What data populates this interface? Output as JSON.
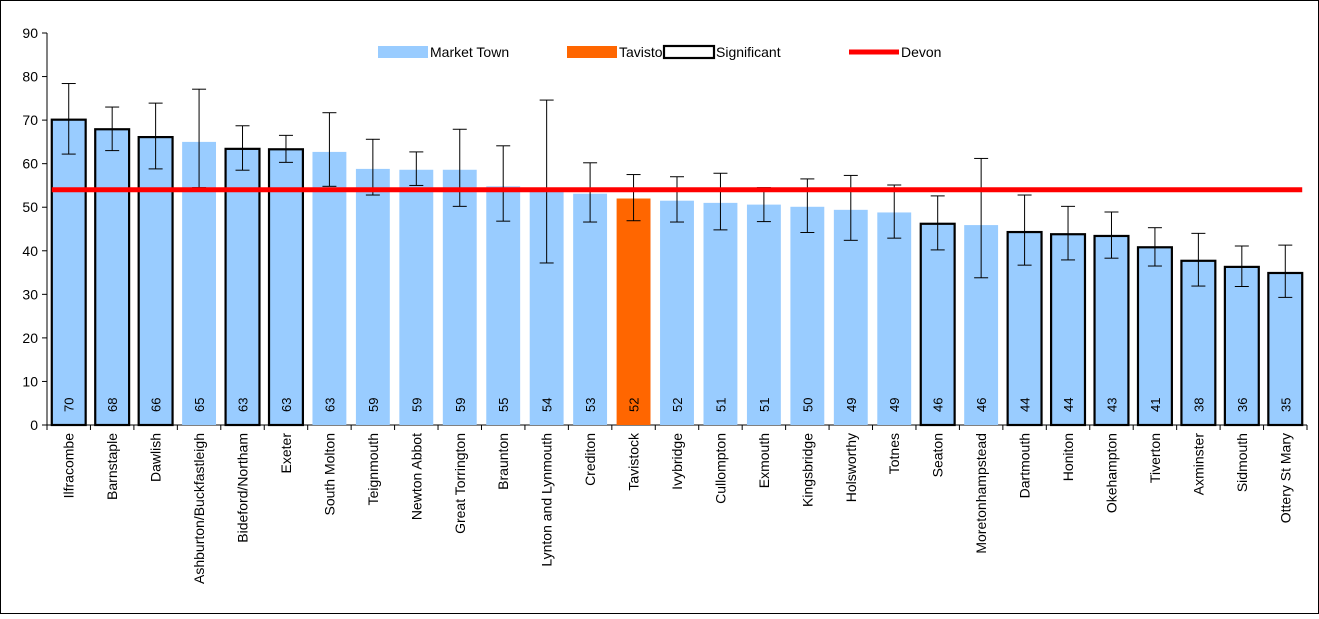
{
  "chart_data": {
    "type": "bar",
    "title": "",
    "xlabel": "",
    "ylabel": "",
    "ylim": [
      0,
      90
    ],
    "yticks": [
      0,
      10,
      20,
      30,
      40,
      50,
      60,
      70,
      80,
      90
    ],
    "grid": false,
    "legend_placement": "top-center",
    "legend": [
      {
        "label": "Market Town",
        "kind": "fill",
        "color": "#99ccff"
      },
      {
        "label": "Tavistock",
        "kind": "fill",
        "color": "#ff6600"
      },
      {
        "label": "Significant",
        "kind": "outline",
        "color": "#000000"
      },
      {
        "label": "Devon",
        "kind": "line",
        "color": "#ff0000"
      }
    ],
    "reference_line": {
      "name": "Devon",
      "value": 54,
      "color": "#ff0000"
    },
    "colors": {
      "market_town": "#99ccff",
      "highlight": "#ff6600",
      "significant_border": "#000000",
      "devon_line": "#ff0000"
    },
    "categories": [
      "Ilfracombe",
      "Barnstaple",
      "Dawlish",
      "Ashburton/Buckfastleigh",
      "Bideford/Northam",
      "Exeter",
      "South Molton",
      "Teignmouth",
      "Newton Abbot",
      "Great Torrington",
      "Braunton",
      "Lynton and Lynmouth",
      "Crediton",
      "Tavistock",
      "Ivybridge",
      "Cullompton",
      "Exmouth",
      "Kingsbridge",
      "Holsworthy",
      "Totnes",
      "Seaton",
      "Moretonhampstead",
      "Dartmouth",
      "Honiton",
      "Okehampton",
      "Tiverton",
      "Axminster",
      "Sidmouth",
      "Ottery St Mary"
    ],
    "values": [
      70.1,
      67.9,
      66.1,
      65.0,
      63.4,
      63.3,
      62.7,
      58.8,
      58.6,
      58.6,
      54.8,
      53.6,
      53.1,
      52.0,
      51.5,
      51.0,
      50.6,
      50.1,
      49.4,
      48.8,
      46.2,
      45.9,
      44.3,
      43.8,
      43.4,
      40.8,
      37.7,
      36.3,
      34.9
    ],
    "value_labels": [
      "70",
      "68",
      "66",
      "65",
      "63",
      "63",
      "63",
      "59",
      "59",
      "59",
      "55",
      "54",
      "53",
      "52",
      "52",
      "51",
      "51",
      "50",
      "49",
      "49",
      "46",
      "46",
      "44",
      "44",
      "43",
      "41",
      "38",
      "36",
      "35"
    ],
    "error_low": [
      62.2,
      63.0,
      58.8,
      54.5,
      58.5,
      60.3,
      54.8,
      52.8,
      55.0,
      50.2,
      46.8,
      37.2,
      46.6,
      46.9,
      46.6,
      44.8,
      46.7,
      44.2,
      42.4,
      42.9,
      40.2,
      33.8,
      36.7,
      37.9,
      38.3,
      36.5,
      31.9,
      31.8,
      29.3
    ],
    "error_high": [
      78.4,
      73.0,
      73.9,
      77.1,
      68.7,
      66.5,
      71.7,
      65.6,
      62.7,
      67.9,
      64.1,
      74.6,
      60.2,
      57.5,
      57.0,
      57.8,
      54.5,
      56.5,
      57.3,
      55.1,
      52.6,
      61.2,
      52.8,
      50.2,
      48.9,
      45.3,
      44.0,
      41.1,
      41.3
    ],
    "significant": [
      true,
      true,
      true,
      false,
      true,
      true,
      false,
      false,
      false,
      false,
      false,
      false,
      false,
      false,
      false,
      false,
      false,
      false,
      false,
      false,
      true,
      false,
      true,
      true,
      true,
      true,
      true,
      true,
      true
    ],
    "highlight_index": 13
  }
}
